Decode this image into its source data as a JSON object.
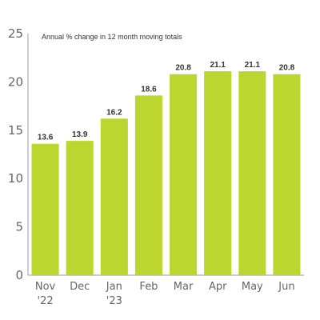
{
  "chart_data": {
    "type": "bar",
    "title": "Annual % change in 12 month moving totals",
    "categories": [
      "Nov\n'22",
      "Dec",
      "Jan\n'23",
      "Feb",
      "Mar",
      "Apr",
      "May",
      "Jun"
    ],
    "values": [
      13.6,
      13.9,
      16.2,
      18.6,
      20.8,
      21.1,
      21.1,
      20.8
    ],
    "value_labels": [
      "13.6",
      "13.9",
      "16.2",
      "18.6",
      "20.8",
      "21.1",
      "21.1",
      "20.8"
    ],
    "yticks": [
      "0",
      "5",
      "10",
      "15",
      "20",
      "25"
    ],
    "ylim": [
      0,
      25
    ],
    "xlabel": "",
    "ylabel": "",
    "grid": false,
    "colors": {
      "bar": "#bcd630",
      "axis": "#999999"
    }
  }
}
